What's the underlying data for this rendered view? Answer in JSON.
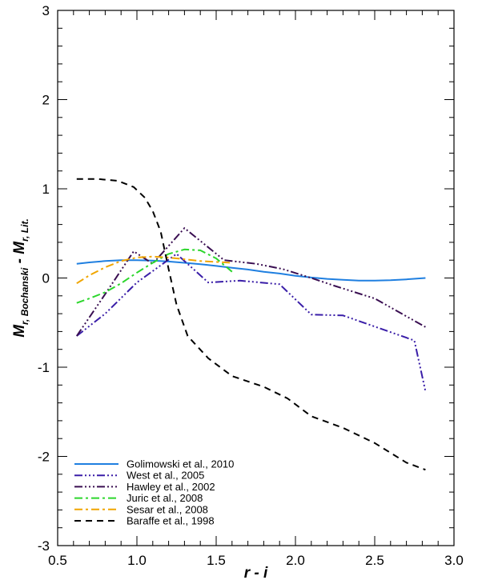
{
  "chart_data": {
    "type": "line",
    "xlabel": "r - i",
    "ylabel": {
      "main": "M",
      "sub1": "r, Bochanski",
      "sep": " - ",
      "main2": "M",
      "sub2": "r, Lit."
    },
    "xlim": [
      0.5,
      3.0
    ],
    "ylim": [
      -3,
      3
    ],
    "xticks": [
      "0.5",
      "1.0",
      "1.5",
      "2.0",
      "2.5",
      "3.0"
    ],
    "yticks": [
      "-3",
      "-2",
      "-1",
      "0",
      "1",
      "2",
      "3"
    ],
    "grid": false,
    "legend_position": "bottom-left",
    "series": [
      {
        "name": "Golimowski et al., 2010",
        "color": "#1f7fe0",
        "dash": "",
        "width": 2,
        "x": [
          0.62,
          0.7,
          0.8,
          0.9,
          1.0,
          1.1,
          1.2,
          1.3,
          1.4,
          1.5,
          1.6,
          1.7,
          1.8,
          1.9,
          2.0,
          2.1,
          2.2,
          2.3,
          2.4,
          2.5,
          2.6,
          2.7,
          2.82
        ],
        "y": [
          0.16,
          0.175,
          0.19,
          0.2,
          0.2,
          0.195,
          0.185,
          0.17,
          0.155,
          0.135,
          0.115,
          0.095,
          0.07,
          0.05,
          0.025,
          0.005,
          -0.01,
          -0.02,
          -0.03,
          -0.03,
          -0.025,
          -0.015,
          0.0
        ]
      },
      {
        "name": "West et al., 2005",
        "color": "#3a1ea8",
        "dash": "10 3 2 3 2 3 2 3",
        "width": 2,
        "x": [
          0.62,
          0.8,
          1.0,
          1.25,
          1.45,
          1.65,
          1.9,
          2.1,
          2.3,
          2.75,
          2.82
        ],
        "y": [
          -0.65,
          -0.4,
          -0.05,
          0.27,
          -0.05,
          -0.03,
          -0.07,
          -0.41,
          -0.42,
          -0.7,
          -1.27
        ]
      },
      {
        "name": "Hawley et al., 2002",
        "color": "#3a0f52",
        "dash": "10 3 2 3 2 3 2 3",
        "width": 2,
        "x": [
          0.62,
          0.8,
          0.98,
          1.1,
          1.3,
          1.55,
          1.75,
          1.92,
          2.1,
          2.25,
          2.5,
          2.82
        ],
        "y": [
          -0.65,
          -0.18,
          0.3,
          0.16,
          0.56,
          0.2,
          0.16,
          0.1,
          0.0,
          -0.09,
          -0.23,
          -0.55
        ]
      },
      {
        "name": "Juric et al., 2008",
        "color": "#2cd62c",
        "dash": "10 4 3 4",
        "width": 2,
        "x": [
          0.62,
          0.7,
          0.8,
          0.9,
          1.0,
          1.1,
          1.2,
          1.3,
          1.4,
          1.5,
          1.6
        ],
        "y": [
          -0.28,
          -0.23,
          -0.16,
          -0.06,
          0.06,
          0.17,
          0.27,
          0.32,
          0.31,
          0.22,
          0.07
        ]
      },
      {
        "name": "Sesar et al., 2008",
        "color": "#f0a500",
        "dash": "10 4 3 4",
        "width": 2,
        "x": [
          0.62,
          0.7,
          0.8,
          0.9,
          1.0,
          1.1,
          1.2,
          1.3,
          1.4,
          1.5,
          1.6
        ],
        "y": [
          -0.06,
          0.03,
          0.12,
          0.19,
          0.23,
          0.24,
          0.23,
          0.21,
          0.19,
          0.18,
          0.17
        ]
      },
      {
        "name": "Baraffe et al., 1998",
        "color": "#000000",
        "dash": "8 6",
        "width": 2,
        "x": [
          0.62,
          0.75,
          0.88,
          0.98,
          1.05,
          1.1,
          1.15,
          1.2,
          1.25,
          1.32,
          1.45,
          1.6,
          1.8,
          1.95,
          2.1,
          2.3,
          2.5,
          2.7,
          2.82
        ],
        "y": [
          1.11,
          1.11,
          1.09,
          1.02,
          0.9,
          0.75,
          0.52,
          0.1,
          -0.3,
          -0.65,
          -0.9,
          -1.1,
          -1.22,
          -1.35,
          -1.55,
          -1.68,
          -1.85,
          -2.07,
          -2.15
        ]
      }
    ]
  }
}
